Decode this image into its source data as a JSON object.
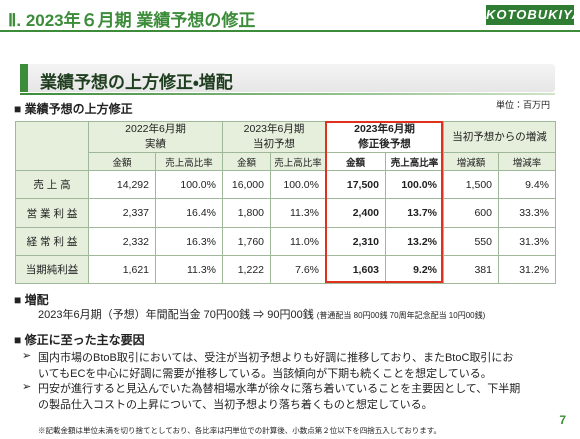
{
  "header": {
    "title": "Ⅱ. 2023年６月期 業績予想の修正",
    "logo": "KOTOBUKIYA"
  },
  "section": {
    "title": "業績予想の上方修正・増配"
  },
  "revision": {
    "heading": "■ 業績予想の上方修正",
    "unit": "単位：百万円",
    "table": {
      "groups": [
        [
          "2022年6月期",
          "実績"
        ],
        [
          "2023年6月期",
          "当初予想"
        ],
        [
          "2023年6月期",
          "修正後予想"
        ],
        [
          "当初予想からの増減"
        ]
      ],
      "subheaders": [
        "金額",
        "売上高比率",
        "金額",
        "売上高比率",
        "金額",
        "売上高比率",
        "増減額",
        "増減率"
      ],
      "rows": [
        [
          "売 上 高",
          "14,292",
          "100.0%",
          "16,000",
          "100.0%",
          "17,500",
          "100.0%",
          "1,500",
          "9.4%"
        ],
        [
          "営 業 利 益",
          "2,337",
          "16.4%",
          "1,800",
          "11.3%",
          "2,400",
          "13.7%",
          "600",
          "33.3%"
        ],
        [
          "経 常 利 益",
          "2,332",
          "16.3%",
          "1,760",
          "11.0%",
          "2,310",
          "13.2%",
          "550",
          "31.3%"
        ],
        [
          "当期純利益",
          "1,621",
          "11.3%",
          "1,222",
          "7.6%",
          "1,603",
          "9.2%",
          "381",
          "31.2%"
        ]
      ]
    }
  },
  "dividend": {
    "heading": "■ 増配",
    "text": "2023年6月期（予想）年間配当金 70円00銭 ⇒ 90円00銭",
    "note": "(普通配当 80円00銭 70周年記念配当 10円00銭)"
  },
  "reasons": {
    "heading": "■ 修正に至った主な要因",
    "items": [
      {
        "marker": "➢",
        "lines": [
          "国内市場のBtoB取引においては、受注が当初予想よりも好調に推移しており、またBtoC取引にお",
          "いてもECを中心に好調に需要が推移している。当該傾向が下期も続くことを想定している。"
        ]
      },
      {
        "marker": "➢",
        "lines": [
          "円安が進行すると見込んでいた為替相場水準が徐々に落ち着いていることを主要因として、下半期",
          "の製品仕入コストの上昇について、当初予想より落ち着くものと想定している。"
        ]
      }
    ]
  },
  "footnote": "※記載金額は単位未満を切り捨てとしており、各比率は円単位での計算後、小数点第２位以下を四捨五入しております。",
  "page_number": "7"
}
